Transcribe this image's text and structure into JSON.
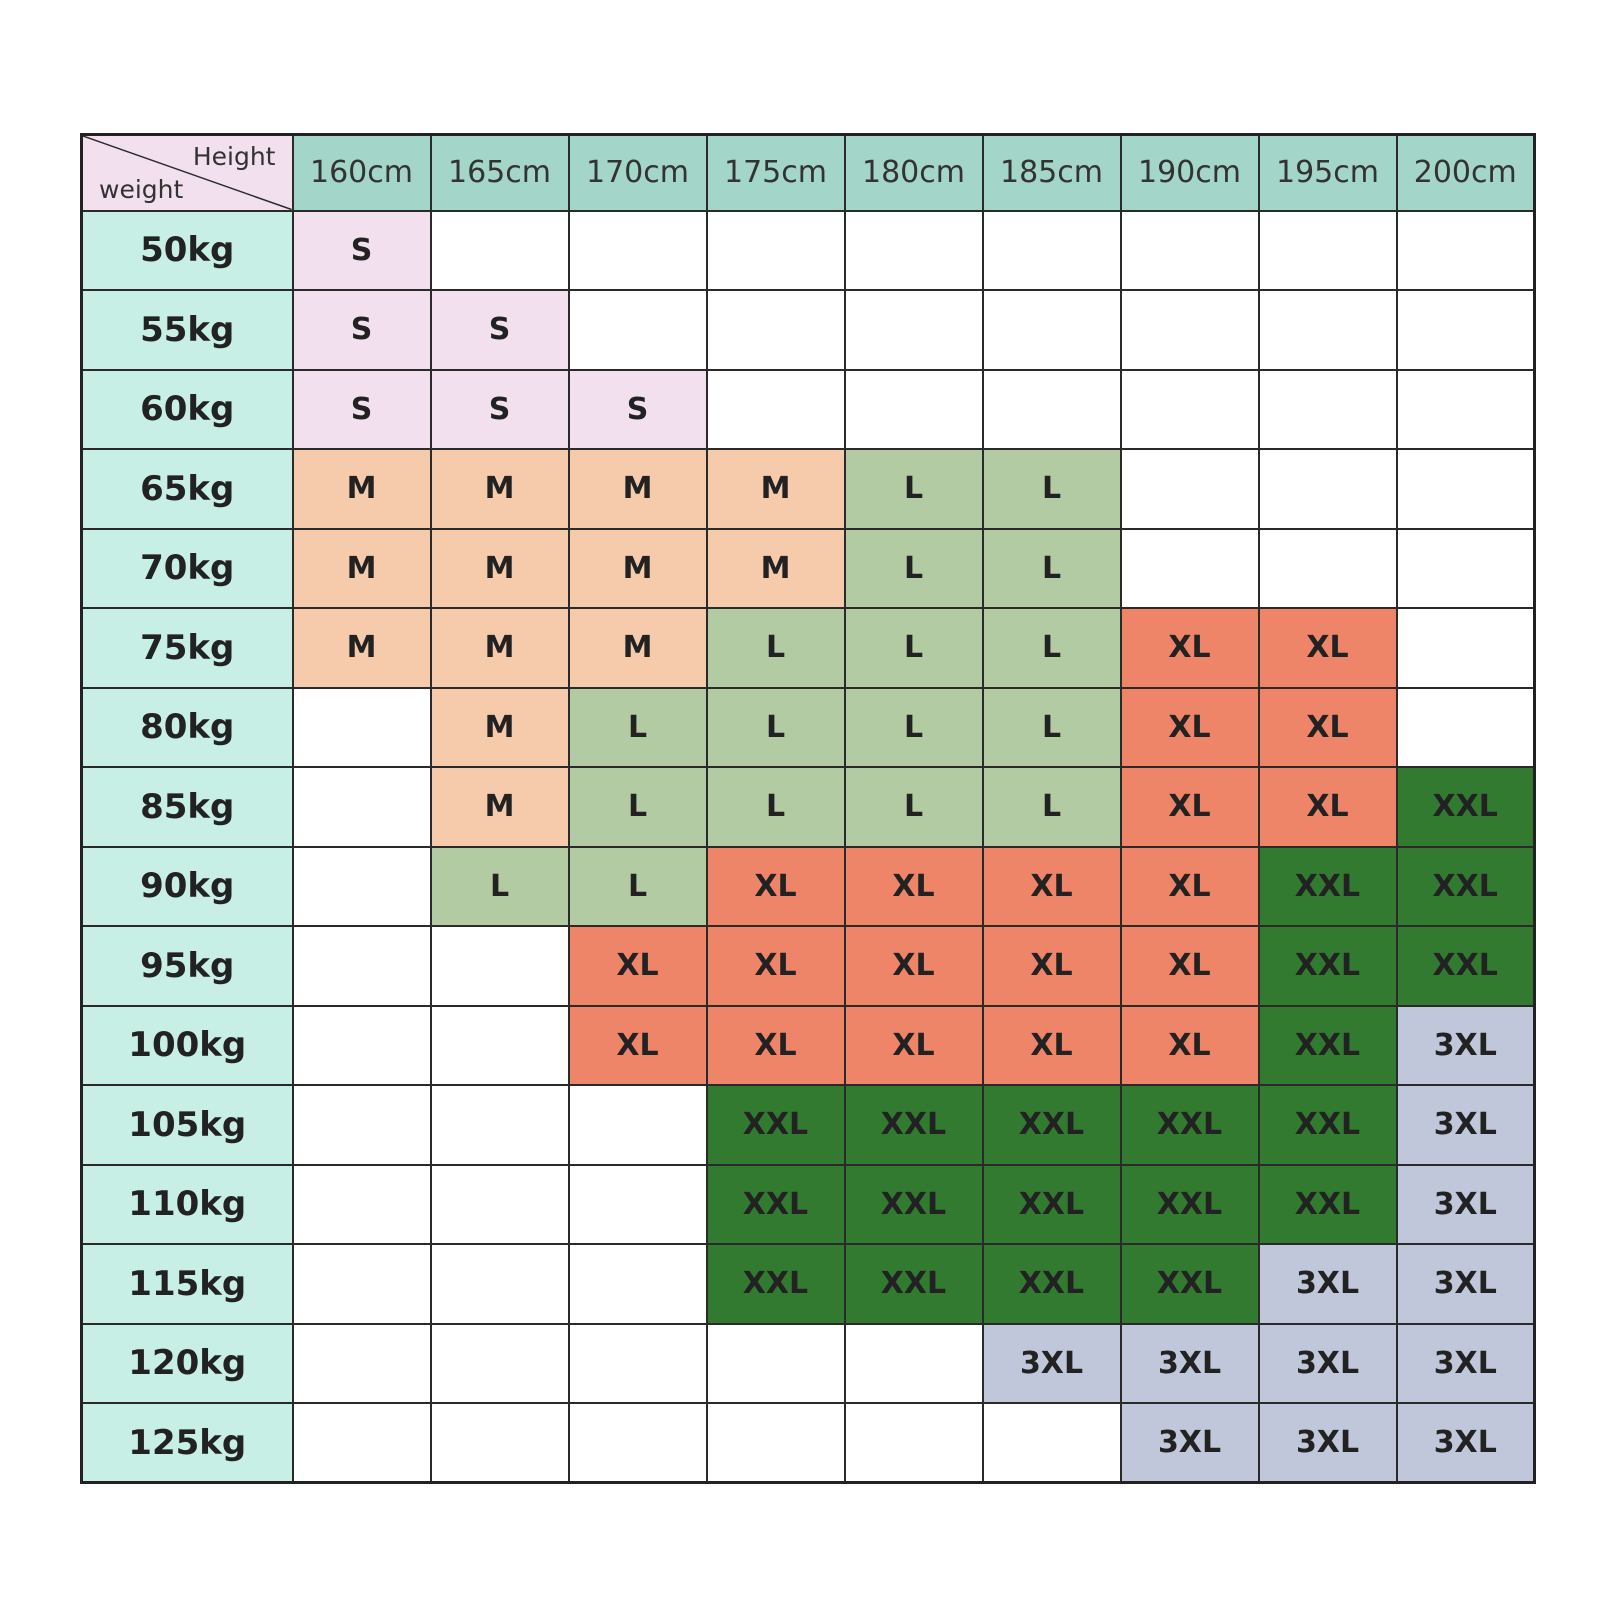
{
  "chart_data": {
    "type": "table",
    "corner": {
      "column_axis": "Height",
      "row_axis": "weight"
    },
    "heights": [
      "160cm",
      "165cm",
      "170cm",
      "175cm",
      "180cm",
      "185cm",
      "190cm",
      "195cm",
      "200cm"
    ],
    "weights": [
      "50kg",
      "55kg",
      "60kg",
      "65kg",
      "70kg",
      "75kg",
      "80kg",
      "85kg",
      "90kg",
      "95kg",
      "100kg",
      "105kg",
      "110kg",
      "115kg",
      "120kg",
      "125kg"
    ],
    "sizes": [
      [
        "S",
        "",
        "",
        "",
        "",
        "",
        "",
        "",
        ""
      ],
      [
        "S",
        "S",
        "",
        "",
        "",
        "",
        "",
        "",
        ""
      ],
      [
        "S",
        "S",
        "S",
        "",
        "",
        "",
        "",
        "",
        ""
      ],
      [
        "M",
        "M",
        "M",
        "M",
        "L",
        "L",
        "",
        "",
        ""
      ],
      [
        "M",
        "M",
        "M",
        "M",
        "L",
        "L",
        "",
        "",
        ""
      ],
      [
        "M",
        "M",
        "M",
        "L",
        "L",
        "L",
        "XL",
        "XL",
        ""
      ],
      [
        "",
        "M",
        "L",
        "L",
        "L",
        "L",
        "XL",
        "XL",
        ""
      ],
      [
        "",
        "M",
        "L",
        "L",
        "L",
        "L",
        "XL",
        "XL",
        "XXL"
      ],
      [
        "",
        "L",
        "L",
        "XL",
        "XL",
        "XL",
        "XL",
        "XXL",
        "XXL"
      ],
      [
        "",
        "",
        "XL",
        "XL",
        "XL",
        "XL",
        "XL",
        "XXL",
        "XXL"
      ],
      [
        "",
        "",
        "XL",
        "XL",
        "XL",
        "XL",
        "XL",
        "XXL",
        "3XL"
      ],
      [
        "",
        "",
        "",
        "XXL",
        "XXL",
        "XXL",
        "XXL",
        "XXL",
        "3XL"
      ],
      [
        "",
        "",
        "",
        "XXL",
        "XXL",
        "XXL",
        "XXL",
        "XXL",
        "3XL"
      ],
      [
        "",
        "",
        "",
        "XXL",
        "XXL",
        "XXL",
        "XXL",
        "3XL",
        "3XL"
      ],
      [
        "",
        "",
        "",
        "",
        "",
        "3XL",
        "3XL",
        "3XL",
        "3XL"
      ],
      [
        "",
        "",
        "",
        "",
        "",
        "",
        "3XL",
        "3XL",
        "3XL"
      ]
    ],
    "size_colors": {
      "S": "#f3e0ef",
      "M": "#f6cbab",
      "L": "#b3cba3",
      "XL": "#ee8468",
      "XXL": "#337a31",
      "3XL": "#c0c7da"
    },
    "header_colors": {
      "height_row": "#a3d5c8",
      "weight_column": "#c8efe6",
      "corner": "#f3e0ef"
    }
  }
}
